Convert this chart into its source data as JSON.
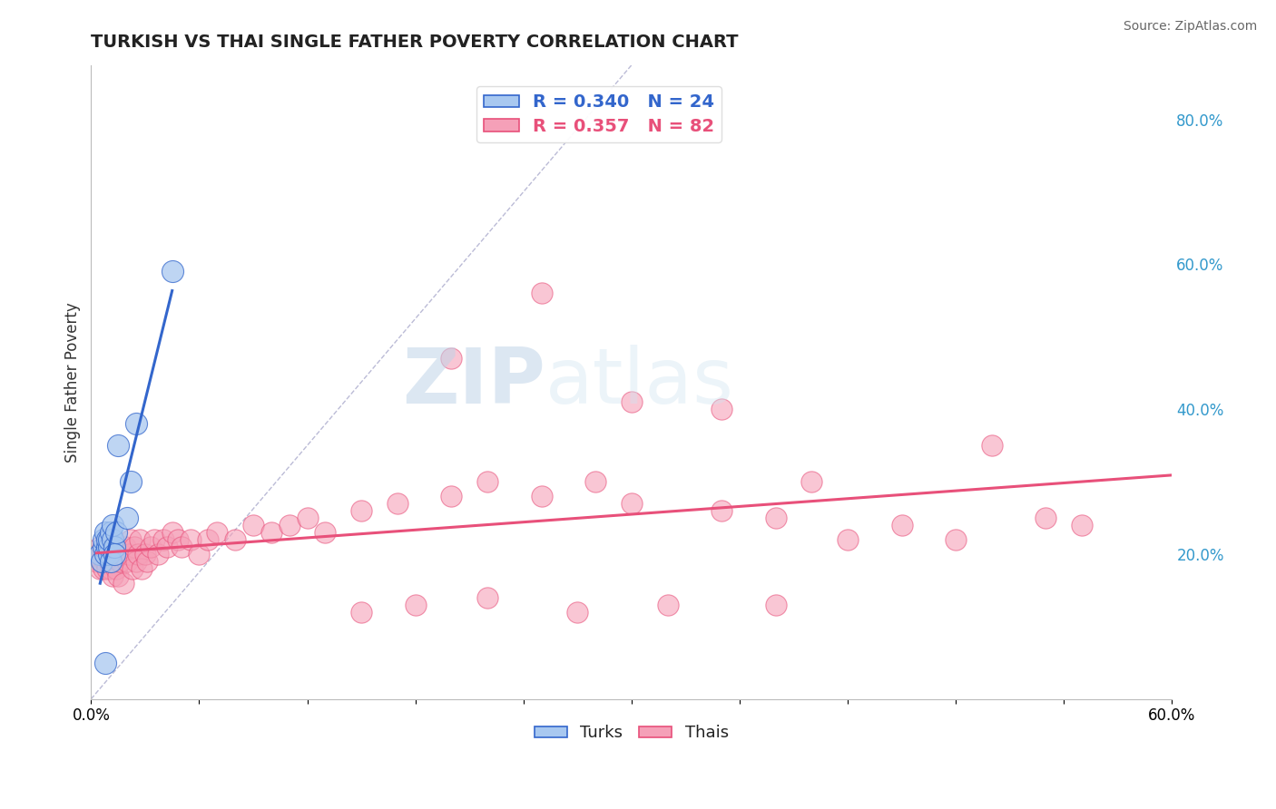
{
  "title": "TURKISH VS THAI SINGLE FATHER POVERTY CORRELATION CHART",
  "source": "Source: ZipAtlas.com",
  "ylabel": "Single Father Poverty",
  "x_min": 0.0,
  "x_max": 0.6,
  "y_min": 0.0,
  "y_max": 0.875,
  "right_yticks": [
    0.2,
    0.4,
    0.6,
    0.8
  ],
  "right_yticklabels": [
    "20.0%",
    "40.0%",
    "60.0%",
    "80.0%"
  ],
  "watermark_zip": "ZIP",
  "watermark_atlas": "atlas",
  "legend_turks_R": "R = 0.340",
  "legend_turks_N": "N = 24",
  "legend_thais_R": "R = 0.357",
  "legend_thais_N": "N = 82",
  "turks_color": "#a8c8f0",
  "thais_color": "#f5a0b8",
  "turks_line_color": "#3366cc",
  "thais_line_color": "#e8507a",
  "ref_line_color": "#aaaacc",
  "background_color": "#ffffff",
  "turks_x": [
    0.005,
    0.006,
    0.007,
    0.007,
    0.008,
    0.008,
    0.009,
    0.009,
    0.01,
    0.01,
    0.01,
    0.011,
    0.011,
    0.012,
    0.012,
    0.013,
    0.013,
    0.014,
    0.015,
    0.02,
    0.022,
    0.025,
    0.045,
    0.008
  ],
  "turks_y": [
    0.2,
    0.19,
    0.21,
    0.22,
    0.2,
    0.23,
    0.21,
    0.22,
    0.2,
    0.21,
    0.22,
    0.23,
    0.19,
    0.22,
    0.24,
    0.21,
    0.2,
    0.23,
    0.35,
    0.25,
    0.3,
    0.38,
    0.59,
    0.05
  ],
  "thais_x": [
    0.003,
    0.004,
    0.005,
    0.005,
    0.006,
    0.006,
    0.007,
    0.007,
    0.008,
    0.008,
    0.009,
    0.009,
    0.01,
    0.01,
    0.011,
    0.011,
    0.012,
    0.012,
    0.013,
    0.013,
    0.014,
    0.015,
    0.015,
    0.016,
    0.017,
    0.018,
    0.019,
    0.02,
    0.021,
    0.022,
    0.023,
    0.024,
    0.025,
    0.026,
    0.027,
    0.028,
    0.03,
    0.031,
    0.033,
    0.035,
    0.037,
    0.04,
    0.042,
    0.045,
    0.048,
    0.05,
    0.055,
    0.06,
    0.065,
    0.07,
    0.08,
    0.09,
    0.1,
    0.11,
    0.12,
    0.13,
    0.15,
    0.17,
    0.2,
    0.22,
    0.25,
    0.28,
    0.3,
    0.35,
    0.38,
    0.4,
    0.42,
    0.45,
    0.48,
    0.5,
    0.53,
    0.55,
    0.3,
    0.25,
    0.2,
    0.35,
    0.15,
    0.18,
    0.22,
    0.27,
    0.32,
    0.38
  ],
  "thais_y": [
    0.19,
    0.2,
    0.18,
    0.21,
    0.19,
    0.2,
    0.18,
    0.2,
    0.19,
    0.21,
    0.18,
    0.2,
    0.19,
    0.21,
    0.18,
    0.2,
    0.17,
    0.21,
    0.19,
    0.2,
    0.18,
    0.17,
    0.21,
    0.19,
    0.2,
    0.16,
    0.21,
    0.19,
    0.2,
    0.22,
    0.18,
    0.21,
    0.19,
    0.2,
    0.22,
    0.18,
    0.2,
    0.19,
    0.21,
    0.22,
    0.2,
    0.22,
    0.21,
    0.23,
    0.22,
    0.21,
    0.22,
    0.2,
    0.22,
    0.23,
    0.22,
    0.24,
    0.23,
    0.24,
    0.25,
    0.23,
    0.26,
    0.27,
    0.28,
    0.3,
    0.28,
    0.3,
    0.27,
    0.26,
    0.25,
    0.3,
    0.22,
    0.24,
    0.22,
    0.35,
    0.25,
    0.24,
    0.41,
    0.56,
    0.47,
    0.4,
    0.12,
    0.13,
    0.14,
    0.12,
    0.13,
    0.13
  ]
}
